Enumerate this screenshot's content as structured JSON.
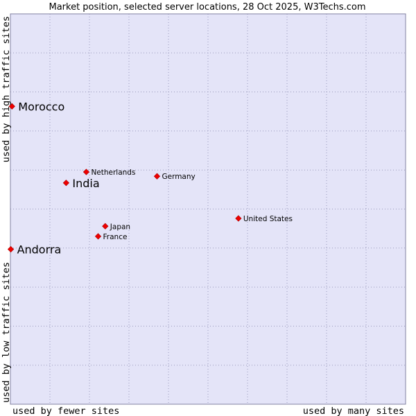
{
  "chart_data": {
    "type": "scatter",
    "title": "Market position, selected server locations, 28 Oct 2025, W3Techs.com",
    "xlabel_left": "used by fewer sites",
    "xlabel_right": "used by many sites",
    "ylabel_bottom": "used by low traffic sites",
    "ylabel_top": "used by high traffic sites",
    "xlim": [
      0,
      100
    ],
    "ylim": [
      0,
      100
    ],
    "grid": true,
    "colors": {
      "plot_bg": "#e4e4f8",
      "grid": "#9999bb",
      "border": "#8080a0",
      "point": "#ee0000"
    },
    "points": [
      {
        "label": "Morocco",
        "x": 0.4,
        "y": 76.3,
        "emphasis": true
      },
      {
        "label": "India",
        "x": 14.1,
        "y": 56.7,
        "emphasis": true
      },
      {
        "label": "Andorra",
        "x": 0.1,
        "y": 39.7,
        "emphasis": true
      },
      {
        "label": "Netherlands",
        "x": 19.2,
        "y": 59.5,
        "emphasis": false
      },
      {
        "label": "Germany",
        "x": 37.1,
        "y": 58.4,
        "emphasis": false
      },
      {
        "label": "United States",
        "x": 57.7,
        "y": 47.6,
        "emphasis": false
      },
      {
        "label": "Japan",
        "x": 24.0,
        "y": 45.6,
        "emphasis": false
      },
      {
        "label": "France",
        "x": 22.2,
        "y": 43.0,
        "emphasis": false
      }
    ]
  }
}
